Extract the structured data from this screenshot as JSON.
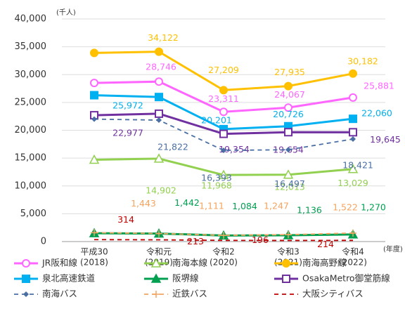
{
  "chart_data": {
    "type": "line",
    "unit_label": "(千人)",
    "x_unit_label": "(年度)",
    "categories": [
      "平成30",
      "令和元",
      "令和2",
      "令和3",
      "令和4"
    ],
    "category_years": [
      "(2018)",
      "(2019)",
      "(2020)",
      "(2021)",
      "(2022)"
    ],
    "ylim": [
      0,
      40000
    ],
    "yticks": [
      {
        "value": 0,
        "label": "0"
      },
      {
        "value": 5000,
        "label": "5,000"
      },
      {
        "value": 10000,
        "label": "10,000"
      },
      {
        "value": 15000,
        "label": "15,000"
      },
      {
        "value": 20000,
        "label": "20,000"
      },
      {
        "value": 25000,
        "label": "25,000"
      },
      {
        "value": 30000,
        "label": "30,000"
      },
      {
        "value": 35000,
        "label": "35,000"
      },
      {
        "value": 40000,
        "label": "40,000"
      }
    ],
    "grid": true,
    "series": [
      {
        "name": "JR阪和線",
        "color": "#ff66ff",
        "marker": "circle-open",
        "dashed": false,
        "values": [
          28500,
          28746,
          23311,
          24067,
          25881
        ],
        "value_labels": [
          null,
          "28,746",
          "23,311",
          "24,067",
          "25,881"
        ]
      },
      {
        "name": "南海本線",
        "color": "#92d050",
        "marker": "triangle-open",
        "dashed": false,
        "values": [
          14700,
          14902,
          11968,
          12013,
          13029
        ],
        "value_labels": [
          null,
          "14,902",
          "11,968",
          "12,013",
          "13,029"
        ]
      },
      {
        "name": "南海高野線",
        "color": "#ffc000",
        "marker": "circle",
        "dashed": false,
        "values": [
          33900,
          34122,
          27209,
          27935,
          30182
        ],
        "value_labels": [
          null,
          "34,122",
          "27,209",
          "27,935",
          "30,182"
        ]
      },
      {
        "name": "泉北高速鉄道",
        "color": "#00b0f0",
        "marker": "square",
        "dashed": false,
        "values": [
          26300,
          25972,
          20201,
          20726,
          22060
        ],
        "value_labels": [
          null,
          "25,972",
          "20,201",
          "20,726",
          "22,060"
        ]
      },
      {
        "name": "阪堺線",
        "color": "#00a050",
        "marker": "triangle",
        "dashed": false,
        "values": [
          1500,
          1442,
          1084,
          1136,
          1270
        ],
        "value_labels": [
          null,
          "1,442",
          "1,084",
          "1,136",
          "1,270"
        ]
      },
      {
        "name": "OsakaMetro御堂筋線",
        "color": "#7030a0",
        "marker": "square-open",
        "dashed": false,
        "values": [
          22700,
          22977,
          19354,
          19654,
          19645
        ],
        "value_labels": [
          null,
          "22,977",
          "19,354",
          "19,654",
          "19,645"
        ]
      },
      {
        "name": "南海バス",
        "color": "#4a6fa5",
        "marker": "diamond",
        "dashed": true,
        "values": [
          22000,
          21822,
          16393,
          16497,
          18421
        ],
        "value_labels": [
          null,
          "21,822",
          "16,393",
          "16,497",
          "18,421"
        ]
      },
      {
        "name": "近鉄バス",
        "color": "#f4a460",
        "marker": "plus",
        "dashed": true,
        "values": [
          1600,
          1443,
          1111,
          1247,
          1522
        ],
        "value_labels": [
          null,
          "1,443",
          "1,111",
          "1,247",
          "1,522"
        ]
      },
      {
        "name": "大阪シティバス",
        "color": "#c00000",
        "marker": "none",
        "dashed": true,
        "values": [
          350,
          314,
          213,
          196,
          214
        ],
        "value_labels": [
          null,
          "314",
          "213",
          "196",
          "214"
        ]
      }
    ]
  }
}
